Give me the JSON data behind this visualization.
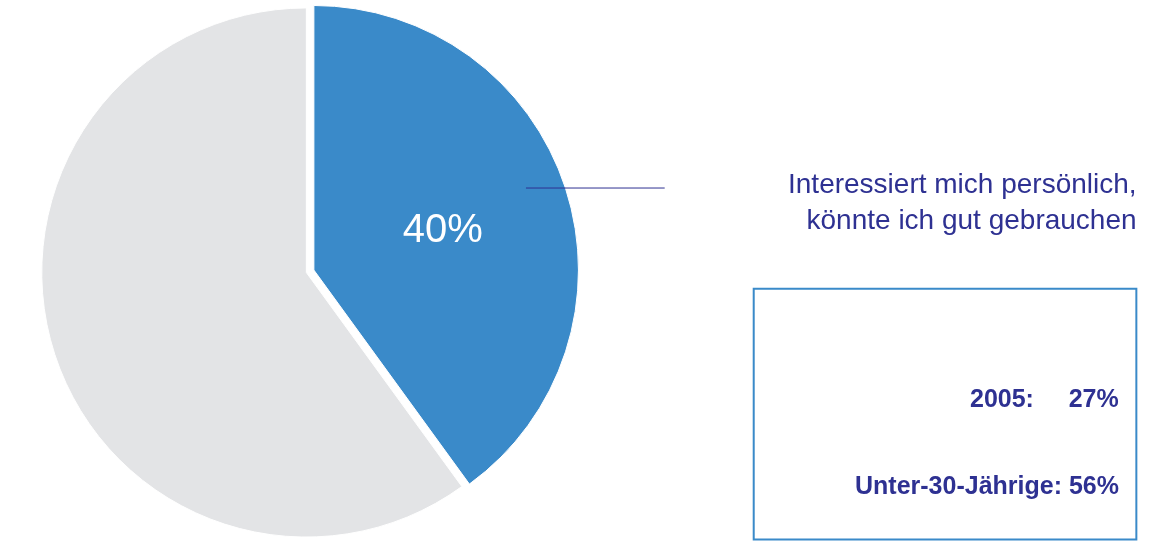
{
  "chart_data": {
    "type": "pie",
    "categories": [
      "Interessiert mich persönlich, könnte ich gut gebrauchen",
      null
    ],
    "values": [
      40,
      60
    ],
    "colors": [
      "#3a8ac9",
      "#e3e4e6"
    ],
    "value_labels": [
      "40%",
      null
    ],
    "legend": false,
    "annotations": [
      "2005:     27%",
      "Unter-30-Jährige: 56%"
    ]
  }
}
